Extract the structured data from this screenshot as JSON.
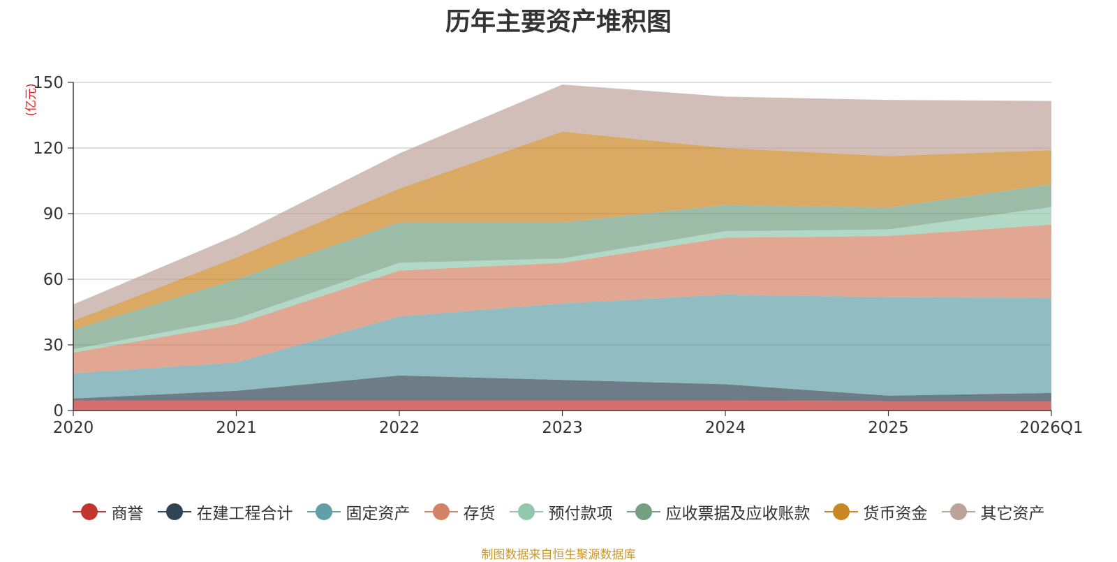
{
  "chart_data": {
    "type": "area",
    "stacked": true,
    "title": "历年主要资产堆积图",
    "ylabel": "(亿元)",
    "xlabel": "",
    "categories": [
      "2020",
      "2021",
      "2022",
      "2023",
      "2024",
      "2025",
      "2026Q1"
    ],
    "ylim": [
      0,
      150
    ],
    "yticks": [
      0,
      30,
      60,
      90,
      120,
      150
    ],
    "grid": true,
    "legend_position": "bottom",
    "series": [
      {
        "name": "商誉",
        "color": "#c23531",
        "values": [
          4.5,
          4.5,
          4.5,
          4.5,
          4.5,
          4.3,
          4.3
        ]
      },
      {
        "name": "在建工程合计",
        "color": "#2f4554",
        "values": [
          1.0,
          4.5,
          11.5,
          9.5,
          7.5,
          2.5,
          3.7
        ]
      },
      {
        "name": "固定资产",
        "color": "#61a0a8",
        "values": [
          11.5,
          13.0,
          27.0,
          35.0,
          41.0,
          45.0,
          43.5
        ]
      },
      {
        "name": "存货",
        "color": "#d48265",
        "values": [
          9.5,
          17.5,
          21.0,
          18.5,
          26.0,
          28.0,
          33.5
        ]
      },
      {
        "name": "预付款项",
        "color": "#91c7ae",
        "values": [
          1.5,
          2.5,
          3.5,
          2.0,
          3.0,
          3.0,
          8.0
        ]
      },
      {
        "name": "应收票据及应收账款",
        "color": "#749f83",
        "values": [
          9.0,
          18.0,
          18.5,
          16.5,
          12.0,
          10.0,
          10.5
        ]
      },
      {
        "name": "货币资金",
        "color": "#ca8622",
        "values": [
          4.0,
          10.0,
          15.5,
          41.5,
          26.0,
          23.5,
          15.5
        ]
      },
      {
        "name": "其它资产",
        "color": "#bda29a",
        "values": [
          7.5,
          10.0,
          16.0,
          21.5,
          23.5,
          25.7,
          22.5
        ]
      }
    ]
  },
  "footer": {
    "source": "制图数据来自恒生聚源数据库"
  }
}
